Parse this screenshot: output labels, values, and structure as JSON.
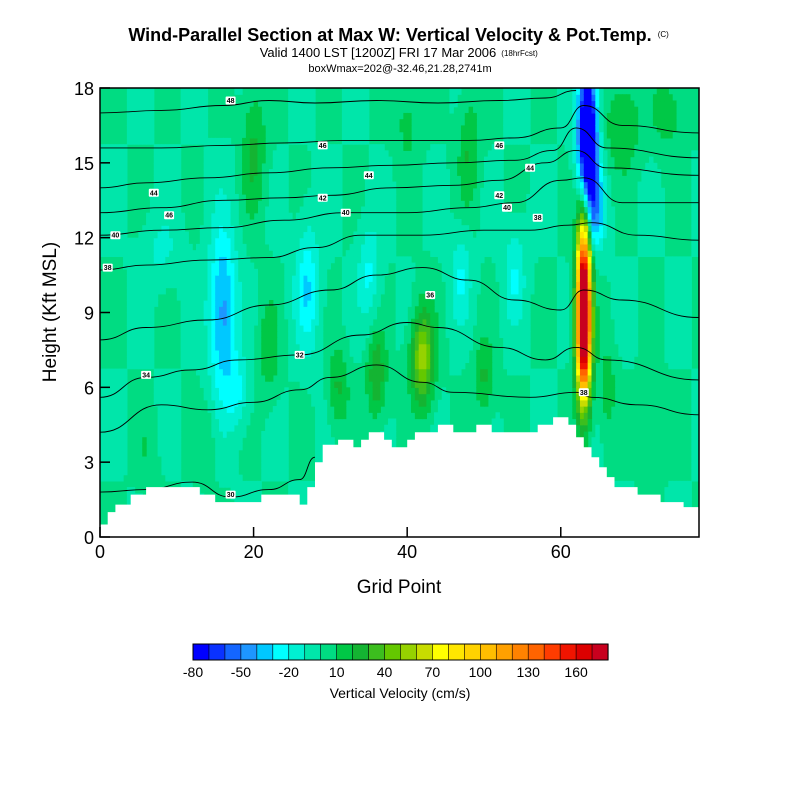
{
  "chart_data": {
    "type": "heatmap",
    "title": "Wind-Parallel Section at Max W: Vertical Velocity & Pot.Temp.",
    "title_mark": "(C)",
    "subtitle": "Valid 1400 LST [1200Z] FRI 17 Mar 2006",
    "subtitle_forecast": "(18hrFcst)",
    "subtitle2": "boxWmax=202@-32.46,21.28,2741m",
    "xlabel": "Grid Point",
    "ylabel": "Height (Kft MSL)",
    "xlim": [
      0,
      78
    ],
    "ylim": [
      0,
      18
    ],
    "xticks": [
      0,
      20,
      40,
      60
    ],
    "xtick_labels": [
      "0",
      "20",
      "40",
      "60"
    ],
    "yticks": [
      0,
      3,
      6,
      9,
      12,
      15,
      18
    ],
    "ytick_labels": [
      "0",
      "3",
      "6",
      "9",
      "12",
      "15",
      "18"
    ],
    "colorbar": {
      "label": "Vertical Velocity (cm/s)",
      "min": -80,
      "step": 10,
      "colors": [
        "#0000ff",
        "#0a32ff",
        "#1466ff",
        "#1e96ff",
        "#00c8ff",
        "#00ffff",
        "#00f0d2",
        "#00e6aa",
        "#00dc82",
        "#00c846",
        "#14b432",
        "#3cbe1e",
        "#64c800",
        "#96d200",
        "#c8dc00",
        "#ffff00",
        "#ffe600",
        "#ffd200",
        "#ffbe00",
        "#ffa000",
        "#ff8200",
        "#ff6400",
        "#ff3c00",
        "#f01400",
        "#dc0000",
        "#c8001e"
      ],
      "tick_values": [
        -80,
        -50,
        -20,
        10,
        40,
        70,
        100,
        130,
        160
      ],
      "tick_labels": [
        "-80",
        "-50",
        "-20",
        "10",
        "40",
        "70",
        "100",
        "130",
        "160"
      ]
    },
    "terrain": [
      {
        "x": 0,
        "h": 0.5
      },
      {
        "x": 1,
        "h": 1.0
      },
      {
        "x": 2,
        "h": 1.3
      },
      {
        "x": 4,
        "h": 1.7
      },
      {
        "x": 6,
        "h": 2.0
      },
      {
        "x": 12,
        "h": 2.0
      },
      {
        "x": 13,
        "h": 1.7
      },
      {
        "x": 15,
        "h": 1.4
      },
      {
        "x": 20,
        "h": 1.4
      },
      {
        "x": 21,
        "h": 1.7
      },
      {
        "x": 25,
        "h": 1.7
      },
      {
        "x": 26,
        "h": 1.3
      },
      {
        "x": 27,
        "h": 2.0
      },
      {
        "x": 28,
        "h": 3.0
      },
      {
        "x": 29,
        "h": 3.7
      },
      {
        "x": 31,
        "h": 3.9
      },
      {
        "x": 33,
        "h": 3.6
      },
      {
        "x": 34,
        "h": 3.9
      },
      {
        "x": 35,
        "h": 4.2
      },
      {
        "x": 37,
        "h": 3.9
      },
      {
        "x": 38,
        "h": 3.6
      },
      {
        "x": 40,
        "h": 3.9
      },
      {
        "x": 41,
        "h": 4.2
      },
      {
        "x": 44,
        "h": 4.5
      },
      {
        "x": 46,
        "h": 4.2
      },
      {
        "x": 49,
        "h": 4.5
      },
      {
        "x": 51,
        "h": 4.2
      },
      {
        "x": 57,
        "h": 4.5
      },
      {
        "x": 59,
        "h": 4.8
      },
      {
        "x": 61,
        "h": 4.5
      },
      {
        "x": 62,
        "h": 4.0
      },
      {
        "x": 63,
        "h": 3.6
      },
      {
        "x": 64,
        "h": 3.2
      },
      {
        "x": 65,
        "h": 2.8
      },
      {
        "x": 66,
        "h": 2.4
      },
      {
        "x": 67,
        "h": 2.0
      },
      {
        "x": 70,
        "h": 1.7
      },
      {
        "x": 73,
        "h": 1.4
      },
      {
        "x": 76,
        "h": 1.2
      },
      {
        "x": 78,
        "h": 1.2
      }
    ],
    "theta_contours": [
      {
        "value": 30,
        "pts": [
          [
            0,
            1.8
          ],
          [
            6,
            1.9
          ],
          [
            12,
            2.2
          ],
          [
            17,
            1.6
          ],
          [
            22,
            1.9
          ],
          [
            26,
            2.3
          ],
          [
            28,
            3.2
          ]
        ],
        "label_x": 17
      },
      {
        "value": 32,
        "pts": [
          [
            0,
            4.2
          ],
          [
            8,
            5.3
          ],
          [
            14,
            5.1
          ],
          [
            20,
            5.4
          ],
          [
            26,
            5.9
          ],
          [
            30,
            6.4
          ],
          [
            36,
            6.9
          ],
          [
            42,
            6.2
          ],
          [
            46,
            5.8
          ],
          [
            56,
            5.6
          ],
          [
            62,
            5.8
          ],
          [
            64,
            5.6
          ],
          [
            70,
            5.3
          ],
          [
            78,
            4.9
          ]
        ],
        "label_x": 26
      },
      {
        "value": 34,
        "pts": [
          [
            0,
            5.6
          ],
          [
            6,
            6.4
          ],
          [
            12,
            6.7
          ],
          [
            18,
            7.1
          ],
          [
            26,
            7.3
          ],
          [
            34,
            8.1
          ],
          [
            40,
            8.6
          ],
          [
            44,
            8.4
          ],
          [
            52,
            7.6
          ],
          [
            58,
            7.1
          ],
          [
            62,
            7.6
          ],
          [
            66,
            7.1
          ],
          [
            78,
            6.3
          ]
        ],
        "label_x": 6
      },
      {
        "value": 36,
        "pts": [
          [
            0,
            7.9
          ],
          [
            6,
            8.4
          ],
          [
            14,
            8.7
          ],
          [
            22,
            9.3
          ],
          [
            30,
            9.9
          ],
          [
            36,
            10.5
          ],
          [
            42,
            10.8
          ],
          [
            48,
            10.3
          ],
          [
            54,
            9.5
          ],
          [
            60,
            9.1
          ],
          [
            63,
            9.9
          ],
          [
            68,
            9.5
          ],
          [
            78,
            8.8
          ]
        ],
        "label_x": 43
      },
      {
        "value": 38,
        "pts": [
          [
            0,
            10.7
          ],
          [
            6,
            10.9
          ],
          [
            14,
            11.1
          ],
          [
            22,
            11.2
          ],
          [
            28,
            11.6
          ],
          [
            34,
            12.1
          ],
          [
            42,
            12.1
          ],
          [
            50,
            12.3
          ],
          [
            56,
            12.3
          ],
          [
            61,
            12.5
          ],
          [
            64,
            12.6
          ],
          [
            70,
            12.1
          ],
          [
            78,
            11.9
          ]
        ],
        "label_x": 1
      },
      {
        "value": 40,
        "pts": [
          [
            0,
            12.1
          ],
          [
            8,
            12.3
          ],
          [
            16,
            12.4
          ],
          [
            24,
            12.7
          ],
          [
            32,
            13.0
          ],
          [
            40,
            13.0
          ],
          [
            48,
            13.2
          ],
          [
            54,
            13.4
          ],
          [
            60,
            14.3
          ],
          [
            63,
            14.4
          ],
          [
            68,
            13.4
          ],
          [
            78,
            13.4
          ]
        ],
        "label_x": 32
      },
      {
        "value": 42,
        "pts": [
          [
            0,
            13.0
          ],
          [
            8,
            13.2
          ],
          [
            16,
            13.5
          ],
          [
            24,
            13.6
          ],
          [
            30,
            13.7
          ],
          [
            38,
            14.0
          ],
          [
            46,
            14.1
          ],
          [
            52,
            14.3
          ],
          [
            58,
            15.0
          ],
          [
            62,
            15.5
          ],
          [
            66,
            14.8
          ],
          [
            78,
            14.5
          ]
        ],
        "label_x": 29
      },
      {
        "value": 44,
        "pts": [
          [
            0,
            14.0
          ],
          [
            6,
            14.2
          ],
          [
            14,
            14.4
          ],
          [
            22,
            14.6
          ],
          [
            30,
            14.8
          ],
          [
            38,
            14.9
          ],
          [
            46,
            15.0
          ],
          [
            54,
            15.1
          ],
          [
            59,
            15.5
          ],
          [
            62,
            16.4
          ],
          [
            66,
            15.6
          ],
          [
            78,
            15.2
          ]
        ],
        "label_x": 7
      },
      {
        "value": 46,
        "pts": [
          [
            0,
            15.6
          ],
          [
            8,
            15.6
          ],
          [
            16,
            15.7
          ],
          [
            24,
            15.8
          ],
          [
            32,
            15.9
          ],
          [
            40,
            15.9
          ],
          [
            48,
            15.9
          ],
          [
            54,
            16.0
          ],
          [
            60,
            16.4
          ],
          [
            63,
            17.3
          ],
          [
            68,
            16.5
          ],
          [
            78,
            16.2
          ]
        ],
        "label_x": 29
      },
      {
        "value": 48,
        "pts": [
          [
            0,
            17.0
          ],
          [
            8,
            17.1
          ],
          [
            16,
            17.3
          ],
          [
            22,
            17.5
          ],
          [
            28,
            17.4
          ],
          [
            36,
            17.5
          ],
          [
            44,
            17.4
          ],
          [
            52,
            17.5
          ],
          [
            58,
            17.6
          ],
          [
            62,
            17.9
          ]
        ],
        "label_x": 17
      }
    ],
    "theta_labels": [
      {
        "x": 17,
        "y": 1.7,
        "text": "30"
      },
      {
        "x": 26,
        "y": 7.3,
        "text": "32"
      },
      {
        "x": 6,
        "y": 6.5,
        "text": "34"
      },
      {
        "x": 43,
        "y": 9.7,
        "text": "36"
      },
      {
        "x": 1,
        "y": 10.8,
        "text": "38"
      },
      {
        "x": 2,
        "y": 12.1,
        "text": "40"
      },
      {
        "x": 32,
        "y": 13.0,
        "text": "40"
      },
      {
        "x": 53,
        "y": 13.2,
        "text": "40"
      },
      {
        "x": 29,
        "y": 13.6,
        "text": "42"
      },
      {
        "x": 52,
        "y": 13.7,
        "text": "42"
      },
      {
        "x": 7,
        "y": 13.8,
        "text": "44"
      },
      {
        "x": 35,
        "y": 14.5,
        "text": "44"
      },
      {
        "x": 56,
        "y": 14.8,
        "text": "44"
      },
      {
        "x": 9,
        "y": 12.9,
        "text": "46"
      },
      {
        "x": 29,
        "y": 15.7,
        "text": "46"
      },
      {
        "x": 52,
        "y": 15.7,
        "text": "46"
      },
      {
        "x": 57,
        "y": 12.8,
        "text": "38"
      },
      {
        "x": 17,
        "y": 17.5,
        "text": "48"
      },
      {
        "x": 63,
        "y": 5.8,
        "text": "38"
      }
    ],
    "w_blobs": [
      {
        "x": 63,
        "y": 9.5,
        "sx": 0.9,
        "sy": 3.4,
        "w": 200
      },
      {
        "x": 63,
        "y": 7.6,
        "sx": 1.0,
        "sy": 2.2,
        "w": 60
      },
      {
        "x": 63.5,
        "y": 16.0,
        "sx": 1.2,
        "sy": 2.6,
        "w": -130
      },
      {
        "x": 64.5,
        "y": 13.2,
        "sx": 1.3,
        "sy": 1.6,
        "w": -40
      },
      {
        "x": 16,
        "y": 9.0,
        "sx": 1.8,
        "sy": 3.5,
        "w": -45
      },
      {
        "x": 18,
        "y": 5.8,
        "sx": 1.4,
        "sy": 1.4,
        "w": -20
      },
      {
        "x": 27,
        "y": 10.0,
        "sx": 1.6,
        "sy": 2.5,
        "w": -30
      },
      {
        "x": 35,
        "y": 10.5,
        "sx": 1.4,
        "sy": 2.0,
        "w": -22
      },
      {
        "x": 47,
        "y": 10.5,
        "sx": 1.4,
        "sy": 2.0,
        "w": -20
      },
      {
        "x": 54,
        "y": 10.5,
        "sx": 1.4,
        "sy": 2.0,
        "w": -20
      },
      {
        "x": 8,
        "y": 11.5,
        "sx": 2.5,
        "sy": 1.4,
        "w": -12
      },
      {
        "x": 42,
        "y": 7.2,
        "sx": 1.5,
        "sy": 1.9,
        "w": 55
      },
      {
        "x": 36,
        "y": 6.5,
        "sx": 1.3,
        "sy": 1.8,
        "w": 30
      },
      {
        "x": 31,
        "y": 6.0,
        "sx": 1.3,
        "sy": 1.6,
        "w": 22
      },
      {
        "x": 50,
        "y": 6.4,
        "sx": 1.3,
        "sy": 1.6,
        "w": 22
      },
      {
        "x": 22,
        "y": 7.5,
        "sx": 1.3,
        "sy": 2.0,
        "w": 18
      },
      {
        "x": 20,
        "y": 15.5,
        "sx": 1.5,
        "sy": 2.6,
        "w": 22
      },
      {
        "x": 48,
        "y": 15.5,
        "sx": 1.4,
        "sy": 2.4,
        "w": 20
      },
      {
        "x": 68,
        "y": 16.5,
        "sx": 2.2,
        "sy": 1.8,
        "w": 22
      },
      {
        "x": 74,
        "y": 17.0,
        "sx": 2.0,
        "sy": 1.4,
        "w": 18
      },
      {
        "x": 40,
        "y": 16.6,
        "sx": 1.5,
        "sy": 1.6,
        "w": 15
      },
      {
        "x": 66,
        "y": 6.0,
        "sx": 1.2,
        "sy": 2.0,
        "w": 15
      },
      {
        "x": 6,
        "y": 3.5,
        "sx": 1.4,
        "sy": 1.5,
        "w": 8
      },
      {
        "x": 14,
        "y": 4.0,
        "sx": 1.4,
        "sy": 1.5,
        "w": 8
      },
      {
        "x": 72,
        "y": 4.5,
        "sx": 2.0,
        "sy": 1.5,
        "w": 10
      }
    ]
  }
}
